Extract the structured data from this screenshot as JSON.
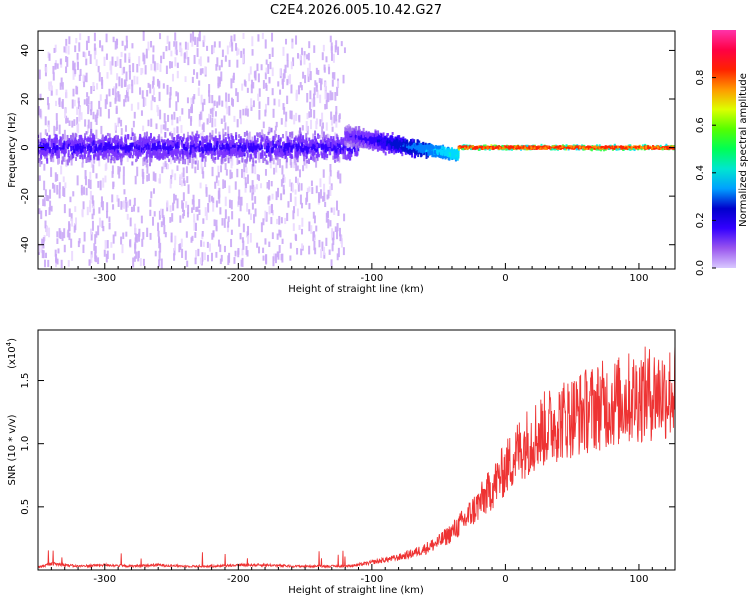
{
  "figure_title": "C2E4.2026.005.10.42.G27",
  "colors": {
    "snr_line": "#ee3333",
    "axis": "#000000",
    "colorbar_stops": [
      "#d9c8ff",
      "#9955ee",
      "#3300ff",
      "#0000cc",
      "#00a0ff",
      "#00e6d0",
      "#00ff55",
      "#55ff00",
      "#ddff00",
      "#ff9900",
      "#ff2200",
      "#ff0044",
      "#ff33aa"
    ]
  },
  "chart_data": [
    {
      "type": "heatmap",
      "title": "C2E4.2026.005.10.42.G27",
      "xlabel": "Height of straight line (km)",
      "ylabel": "Frequency (Hz)",
      "xlim": [
        -350,
        127
      ],
      "ylim": [
        -50,
        48
      ],
      "xticks": [
        -300,
        -200,
        -100,
        0,
        100
      ],
      "xtick_labels": [
        "-300",
        "-200",
        "-100",
        "0",
        "100"
      ],
      "yticks": [
        -40,
        -20,
        0,
        20,
        40
      ],
      "ytick_labels": [
        "-40",
        "-20",
        "0",
        "20",
        "40"
      ],
      "colorbar": {
        "label": "Normalized spectral amplitude",
        "range": [
          0,
          1
        ],
        "ticks": [
          0.0,
          0.2,
          0.4,
          0.6,
          0.8
        ],
        "tick_labels": [
          "0.0",
          "0.2",
          "0.4",
          "0.6",
          "0.8"
        ]
      },
      "features": [
        {
          "x_range": [
            -350,
            -120
          ],
          "freq_spread_hz": [
            -45,
            45
          ],
          "amplitude": "low, scattered"
        },
        {
          "x_range": [
            -120,
            -35
          ],
          "freq_center_hz": [
            5,
            -3
          ],
          "amplitude": "medium, narrowing band"
        },
        {
          "x_range": [
            -35,
            127
          ],
          "freq_center_hz": [
            0,
            0
          ],
          "amplitude": "high, narrow band"
        }
      ],
      "grid": false
    },
    {
      "type": "line",
      "xlabel": "Height of straight line (km)",
      "ylabel": "SNR (10 * v/v)",
      "y_scale_label": "(x10",
      "y_scale_exponent": "4",
      "xlim": [
        -350,
        127
      ],
      "ylim": [
        0,
        1.9
      ],
      "xticks": [
        -300,
        -200,
        -100,
        0,
        100
      ],
      "xtick_labels": [
        "-300",
        "-200",
        "-100",
        "0",
        "100"
      ],
      "yticks": [
        0.5,
        1.0,
        1.5
      ],
      "ytick_labels": [
        "0.5",
        "1.0",
        "1.5"
      ],
      "series": [
        {
          "x": [
            -350,
            -340,
            -320,
            -300,
            -280,
            -260,
            -240,
            -220,
            -200,
            -180,
            -160,
            -140,
            -120,
            -110,
            -100,
            -90,
            -80,
            -70,
            -60,
            -50,
            -40,
            -30,
            -20,
            -10,
            0,
            10,
            20,
            30,
            40,
            50,
            60,
            70,
            80,
            90,
            100,
            110,
            120,
            127
          ],
          "y": [
            0.02,
            0.05,
            0.03,
            0.04,
            0.03,
            0.04,
            0.03,
            0.03,
            0.04,
            0.04,
            0.03,
            0.03,
            0.03,
            0.04,
            0.06,
            0.08,
            0.1,
            0.13,
            0.17,
            0.22,
            0.3,
            0.4,
            0.52,
            0.65,
            0.8,
            0.95,
            1.05,
            1.12,
            1.18,
            1.22,
            1.26,
            1.3,
            1.32,
            1.35,
            1.38,
            1.4,
            1.4,
            1.42
          ]
        }
      ],
      "grid": false
    }
  ]
}
